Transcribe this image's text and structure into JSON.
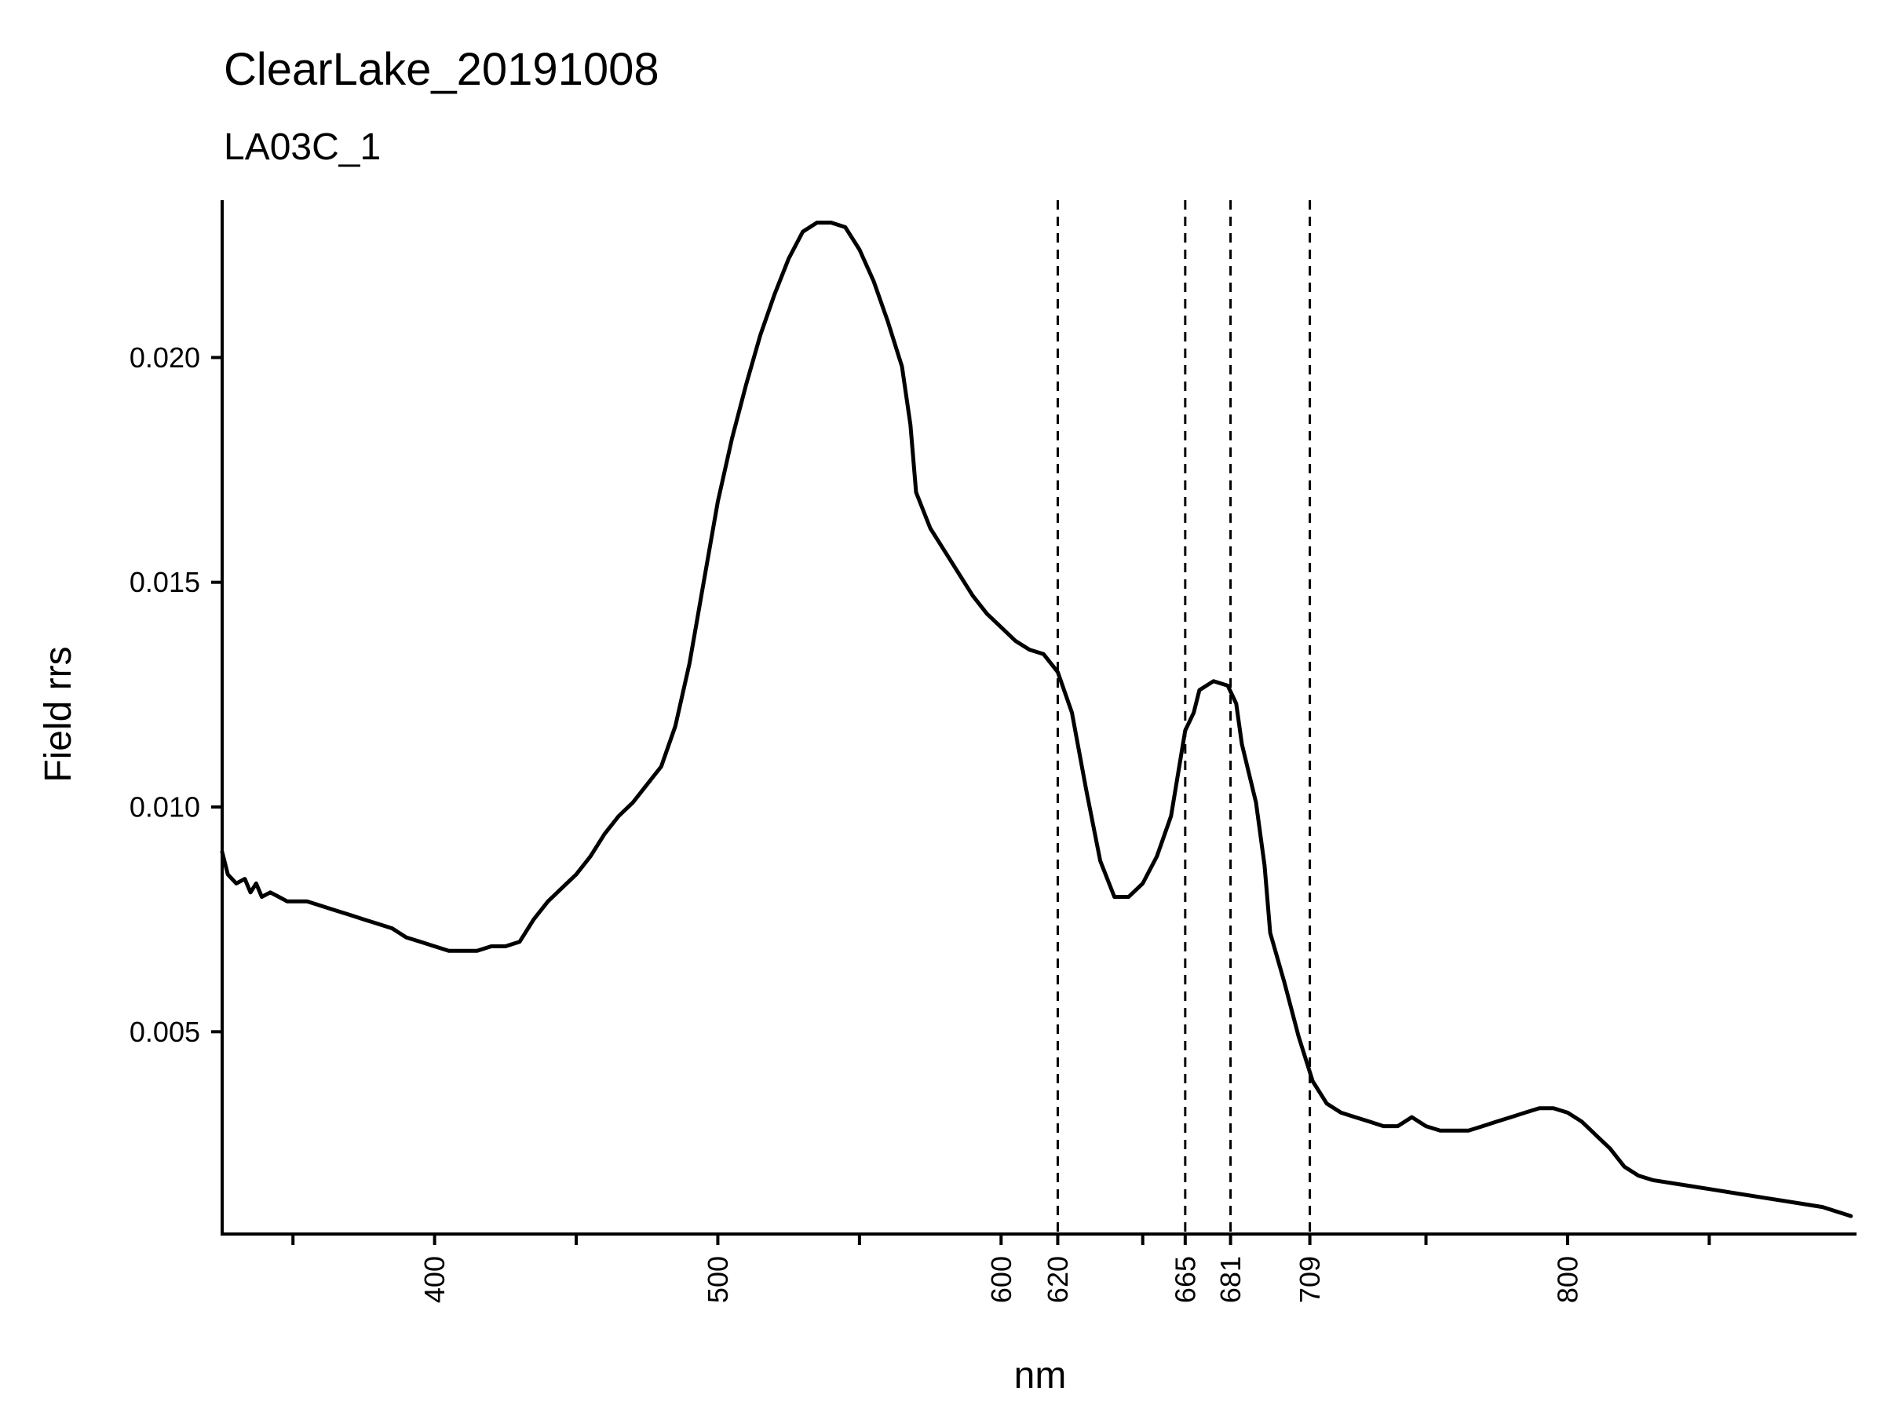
{
  "chart_data": {
    "type": "line",
    "title": "ClearLake_20191008",
    "subtitle": "LA03C_1",
    "xlabel": "nm",
    "ylabel": "Field rrs",
    "xlim": [
      325,
      902
    ],
    "ylim": [
      0.0005,
      0.0235
    ],
    "x_tick_labels": [
      "400",
      "500",
      "600",
      "620",
      "665",
      "681",
      "709",
      "800"
    ],
    "x_minor_ticks": [
      350,
      450,
      550,
      650,
      750,
      850
    ],
    "y_tick_labels": [
      "0.005",
      "0.010",
      "0.015",
      "0.020"
    ],
    "reference_lines": [
      620,
      665,
      681,
      709
    ],
    "grid": false,
    "legend": "none",
    "series": [
      {
        "x": [
          325,
          327,
          330,
          333,
          335,
          337,
          339,
          342,
          345,
          348,
          350,
          355,
          360,
          365,
          370,
          375,
          380,
          385,
          390,
          395,
          400,
          405,
          410,
          415,
          420,
          425,
          430,
          435,
          440,
          445,
          450,
          455,
          460,
          465,
          470,
          475,
          480,
          485,
          490,
          495,
          500,
          505,
          510,
          515,
          520,
          525,
          530,
          535,
          540,
          545,
          550,
          555,
          560,
          565,
          568,
          570,
          575,
          580,
          585,
          590,
          595,
          600,
          605,
          610,
          615,
          620,
          625,
          630,
          635,
          640,
          645,
          650,
          655,
          660,
          665,
          668,
          670,
          675,
          680,
          683,
          685,
          690,
          693,
          695,
          700,
          705,
          710,
          715,
          720,
          725,
          730,
          735,
          740,
          745,
          750,
          755,
          758,
          760,
          765,
          770,
          775,
          780,
          785,
          790,
          795,
          800,
          805,
          810,
          815,
          820,
          825,
          830,
          840,
          850,
          860,
          870,
          880,
          890,
          895,
          900
        ],
        "y": [
          0.009,
          0.0085,
          0.0083,
          0.0084,
          0.0081,
          0.0083,
          0.008,
          0.0081,
          0.008,
          0.0079,
          0.0079,
          0.0079,
          0.0078,
          0.0077,
          0.0076,
          0.0075,
          0.0074,
          0.0073,
          0.0071,
          0.007,
          0.0069,
          0.0068,
          0.0068,
          0.0068,
          0.0069,
          0.0069,
          0.007,
          0.0075,
          0.0079,
          0.0082,
          0.0085,
          0.0089,
          0.0094,
          0.0098,
          0.0101,
          0.0105,
          0.0109,
          0.0118,
          0.0132,
          0.015,
          0.0168,
          0.0182,
          0.0194,
          0.0205,
          0.0214,
          0.0222,
          0.0228,
          0.023,
          0.023,
          0.0229,
          0.0224,
          0.0217,
          0.0208,
          0.0198,
          0.0185,
          0.017,
          0.0162,
          0.0157,
          0.0152,
          0.0147,
          0.0143,
          0.014,
          0.0137,
          0.0135,
          0.0134,
          0.013,
          0.0121,
          0.0104,
          0.0088,
          0.008,
          0.008,
          0.0083,
          0.0089,
          0.0098,
          0.0117,
          0.0121,
          0.0126,
          0.0128,
          0.0127,
          0.0123,
          0.0114,
          0.0101,
          0.0087,
          0.0072,
          0.0061,
          0.0049,
          0.0039,
          0.0034,
          0.0032,
          0.0031,
          0.003,
          0.0029,
          0.0029,
          0.0031,
          0.0029,
          0.0028,
          0.0028,
          0.0028,
          0.0028,
          0.0029,
          0.003,
          0.0031,
          0.0032,
          0.0033,
          0.0033,
          0.0032,
          0.003,
          0.0027,
          0.0024,
          0.002,
          0.0018,
          0.0017,
          0.0016,
          0.0015,
          0.0014,
          0.0013,
          0.0012,
          0.0011,
          0.001,
          0.0009
        ]
      }
    ]
  },
  "style": {
    "line_color": "#000000",
    "axis_color": "#000000",
    "background": "#ffffff"
  }
}
